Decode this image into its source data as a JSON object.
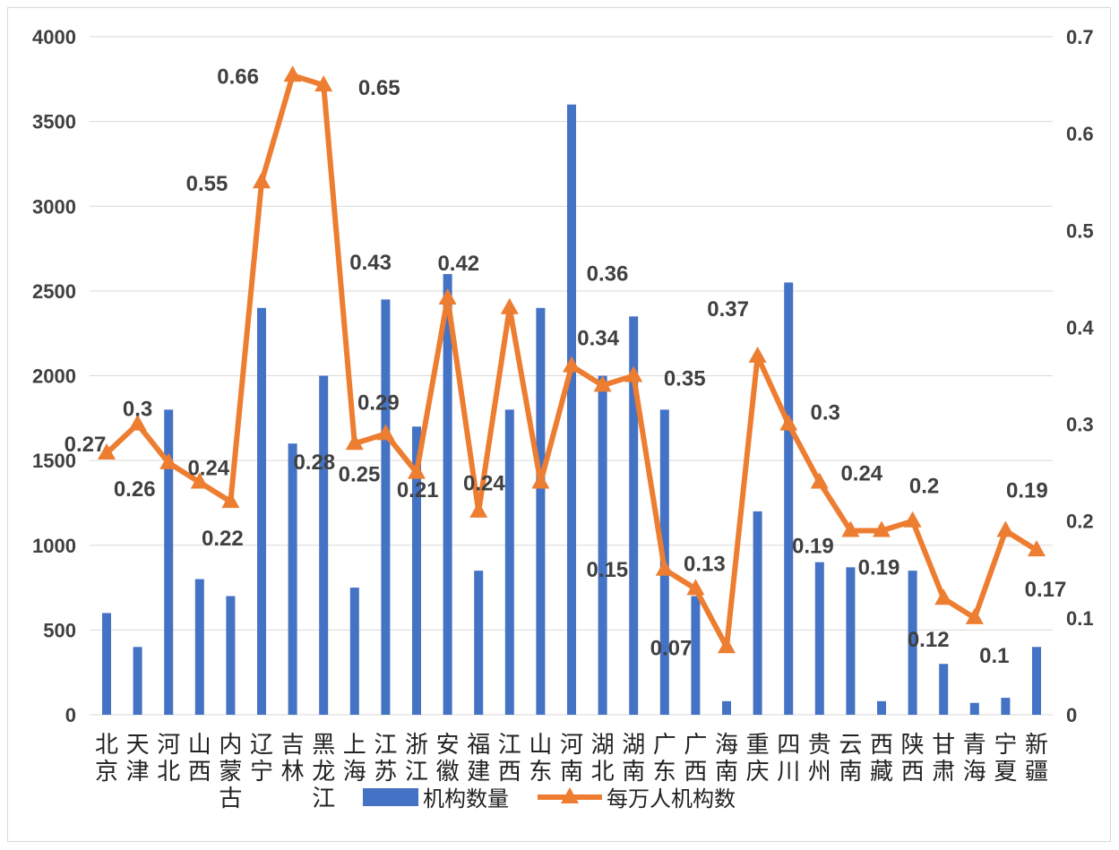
{
  "chart_data": {
    "type": "bar+line",
    "categories": [
      "北京",
      "天津",
      "河北",
      "山西",
      "内蒙古",
      "辽宁",
      "吉林",
      "黑龙江",
      "上海",
      "江苏",
      "浙江",
      "安徽",
      "福建",
      "江西",
      "山东",
      "河南",
      "湖北",
      "湖南",
      "广东",
      "广西",
      "海南",
      "重庆",
      "四川",
      "贵州",
      "云南",
      "西藏",
      "陕西",
      "甘肃",
      "青海",
      "宁夏",
      "新疆"
    ],
    "series": [
      {
        "name": "机构数量",
        "type": "bar",
        "axis": "left",
        "color": "#4472C4",
        "values": [
          600,
          400,
          1800,
          800,
          700,
          2400,
          1600,
          2000,
          750,
          2450,
          1700,
          2600,
          850,
          1800,
          2400,
          3600,
          2000,
          2350,
          1800,
          700,
          80,
          1200,
          2550,
          900,
          870,
          80,
          850,
          300,
          70,
          100,
          400
        ]
      },
      {
        "name": "每万人机构数",
        "type": "line",
        "axis": "right",
        "color": "#ED7D31",
        "values": [
          0.27,
          0.3,
          0.26,
          0.24,
          0.22,
          0.55,
          0.66,
          0.65,
          0.28,
          0.29,
          0.25,
          0.43,
          0.21,
          0.42,
          0.24,
          0.36,
          0.34,
          0.35,
          0.15,
          0.13,
          0.07,
          0.37,
          0.3,
          0.24,
          0.19,
          0.19,
          0.2,
          0.12,
          0.1,
          0.19,
          0.17
        ]
      }
    ],
    "y_left": {
      "range": [
        0,
        4000
      ],
      "ticks": [
        "0",
        "500",
        "1000",
        "1500",
        "2000",
        "2500",
        "3000",
        "3500",
        "4000"
      ]
    },
    "y_right": {
      "range": [
        0,
        0.7
      ],
      "ticks": [
        "0",
        "0.1",
        "0.2",
        "0.3",
        "0.4",
        "0.5",
        "0.6",
        "0.7"
      ]
    },
    "grid": true,
    "legend": "bottom"
  }
}
